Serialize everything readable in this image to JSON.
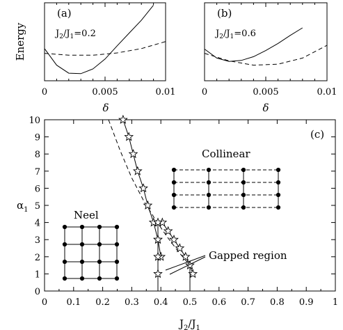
{
  "chart_data": [
    {
      "panel": "(a)",
      "type": "line",
      "ylabel": "Energy",
      "xlabel": "δ",
      "xlim": [
        0,
        0.01
      ],
      "x_ticks": [
        "0",
        "0.005",
        "0.01"
      ],
      "annotation": "J2/J1=0.2",
      "series": [
        {
          "style": "solid",
          "x": [
            0,
            0.001,
            0.002,
            0.003,
            0.004,
            0.005,
            0.006,
            0.007,
            0.008,
            0.009
          ],
          "y": [
            0.68,
            0.33,
            0.16,
            0.15,
            0.25,
            0.46,
            0.74,
            1.01,
            1.28,
            1.6
          ]
        },
        {
          "style": "dashed",
          "x": [
            0,
            0.002,
            0.004,
            0.006,
            0.008,
            0.01
          ],
          "y": [
            0.58,
            0.54,
            0.54,
            0.59,
            0.68,
            0.83
          ]
        }
      ]
    },
    {
      "panel": "(b)",
      "type": "line",
      "xlabel": "δ",
      "xlim": [
        0,
        0.01
      ],
      "x_ticks": [
        "0",
        "0.005",
        "0.01"
      ],
      "annotation": "J2/J1=0.6",
      "series": [
        {
          "style": "solid",
          "x": [
            0,
            0.001,
            0.002,
            0.003,
            0.004,
            0.005,
            0.006,
            0.007,
            0.008
          ],
          "y": [
            0.67,
            0.48,
            0.41,
            0.43,
            0.51,
            0.64,
            0.79,
            0.96,
            1.12
          ]
        },
        {
          "style": "dashed",
          "x": [
            0,
            0.002,
            0.004,
            0.006,
            0.008,
            0.01
          ],
          "y": [
            0.58,
            0.42,
            0.33,
            0.35,
            0.48,
            0.75
          ]
        }
      ]
    },
    {
      "panel": "(c)",
      "type": "line",
      "xlabel": "J2/J1",
      "ylabel": "α1",
      "xlim": [
        0,
        1
      ],
      "ylim": [
        0,
        10
      ],
      "x_ticks": [
        "0",
        "0.1",
        "0.2",
        "0.3",
        "0.4",
        "0.5",
        "0.6",
        "0.7",
        "0.8",
        "0.9",
        "1"
      ],
      "y_ticks": [
        "0",
        "1",
        "2",
        "3",
        "4",
        "5",
        "6",
        "7",
        "8",
        "9",
        "10"
      ],
      "annotations": [
        "Collinear",
        "Neel",
        "Gapped region"
      ],
      "series": [
        {
          "style": "solid-stars",
          "x": [
            0.27,
            0.29,
            0.305,
            0.32,
            0.34,
            0.355,
            0.375,
            0.39,
            0.4
          ],
          "y": [
            10,
            9,
            8,
            7,
            6,
            5,
            4,
            3,
            2
          ]
        },
        {
          "style": "solid-stars",
          "x": [
            0.405,
            0.425,
            0.445,
            0.465,
            0.485,
            0.5,
            0.51
          ],
          "y": [
            4,
            3.5,
            3,
            2.5,
            2,
            1.5,
            1
          ]
        },
        {
          "style": "solid-stars",
          "x": [
            0.39,
            0.39,
            0.39,
            0.39,
            0.39
          ],
          "y": [
            4,
            3,
            2,
            1,
            0
          ]
        },
        {
          "style": "solid",
          "x": [
            0.5,
            0.5
          ],
          "y": [
            1.5,
            0
          ]
        },
        {
          "style": "dashed",
          "x": [
            0.22,
            0.26,
            0.3,
            0.34,
            0.38,
            0.42,
            0.46,
            0.5
          ],
          "y": [
            10,
            8.2,
            6.6,
            5.3,
            4.2,
            3.2,
            2.3,
            1.5
          ]
        }
      ]
    }
  ]
}
